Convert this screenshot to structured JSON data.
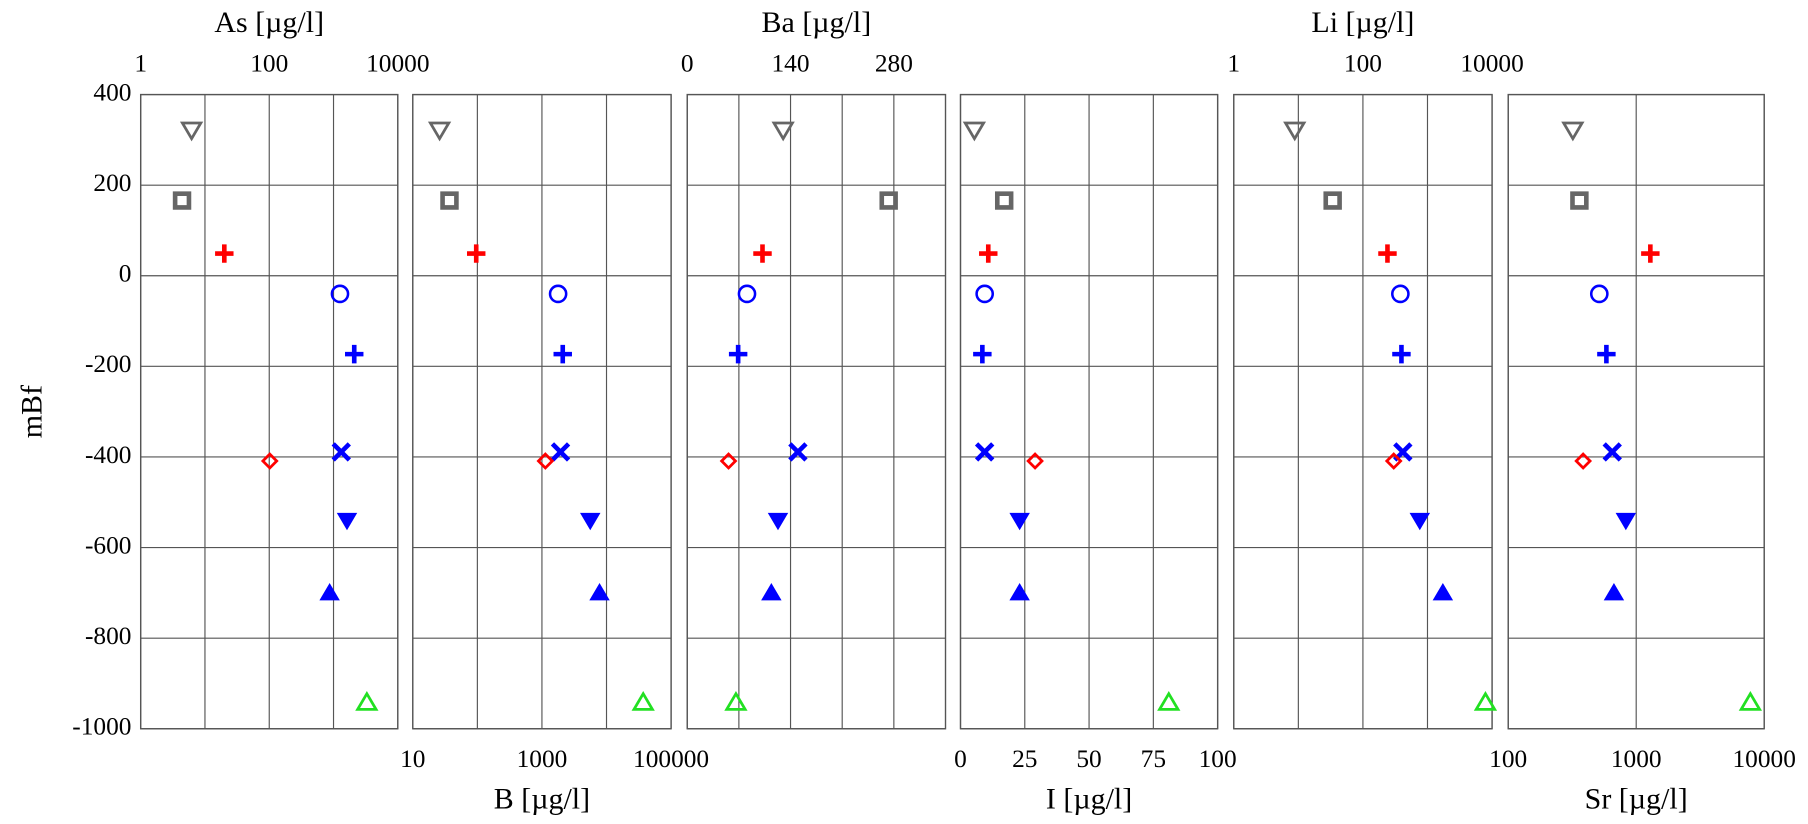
{
  "chart_data": [
    {
      "type": "scatter",
      "xlabel": "As [µg/l]",
      "ylabel": "mBf",
      "xaxis": "top",
      "xscale": "log",
      "xlim": [
        1,
        10000
      ],
      "xticks": [
        1,
        100,
        10000
      ],
      "xgrid": [
        10,
        1000
      ],
      "ylim": [
        -1000,
        400
      ],
      "yticks": [
        -1000,
        -800,
        -600,
        -400,
        -200,
        0,
        200,
        400
      ],
      "show_yticks": true,
      "markers": [
        "triangle-down-open",
        "square-open",
        "plus",
        "circle-open",
        "plus",
        "cross",
        "diamond-open",
        "triangle-down",
        "triangle-up",
        "triangle-up-open"
      ],
      "colors": [
        "#666666",
        "#666666",
        "#ff0000",
        "#0000ff",
        "#0000ff",
        "#0000ff",
        "#ff0000",
        "#0000ff",
        "#0000ff",
        "#22e022"
      ],
      "x": [
        6.2,
        4.4,
        20,
        1260,
        2100,
        1320,
        102,
        1620,
        870,
        3300
      ],
      "values": [
        321,
        166,
        49,
        -40,
        -173,
        -389,
        -409,
        -541,
        -699,
        -941
      ]
    },
    {
      "type": "scatter",
      "xlabel": "B [µg/l]",
      "xaxis": "bottom",
      "xscale": "log",
      "xlim": [
        10,
        100000
      ],
      "xticks": [
        10,
        1000,
        100000
      ],
      "xgrid": [
        100,
        10000
      ],
      "ylim": [
        -1000,
        400
      ],
      "yticks": [
        -1000,
        -800,
        -600,
        -400,
        -200,
        0,
        200,
        400
      ],
      "show_yticks": false,
      "markers": [
        "triangle-down-open",
        "square-open",
        "plus",
        "circle-open",
        "plus",
        "cross",
        "diamond-open",
        "triangle-down",
        "triangle-up",
        "triangle-up-open"
      ],
      "colors": [
        "#666666",
        "#666666",
        "#ff0000",
        "#0000ff",
        "#0000ff",
        "#0000ff",
        "#ff0000",
        "#0000ff",
        "#0000ff",
        "#22e022"
      ],
      "x": [
        26,
        37,
        96,
        1780,
        2100,
        1940,
        1130,
        5600,
        7800,
        37000
      ],
      "values": [
        321,
        166,
        49,
        -40,
        -173,
        -389,
        -409,
        -541,
        -699,
        -941
      ]
    },
    {
      "type": "scatter",
      "xlabel": "Ba [µg/l]",
      "xaxis": "top",
      "xscale": "linear",
      "xlim": [
        0,
        350
      ],
      "xticks": [
        0,
        140,
        280
      ],
      "xgrid": [
        70,
        210
      ],
      "ylim": [
        -1000,
        400
      ],
      "yticks": [
        -1000,
        -800,
        -600,
        -400,
        -200,
        0,
        200,
        400
      ],
      "show_yticks": false,
      "markers": [
        "triangle-down-open",
        "square-open",
        "plus",
        "circle-open",
        "plus",
        "cross",
        "diamond-open",
        "triangle-down",
        "triangle-up",
        "triangle-up-open"
      ],
      "colors": [
        "#666666",
        "#666666",
        "#ff0000",
        "#0000ff",
        "#0000ff",
        "#0000ff",
        "#ff0000",
        "#0000ff",
        "#0000ff",
        "#22e022"
      ],
      "x": [
        130,
        273,
        102,
        81,
        69,
        150,
        56,
        123,
        114,
        66
      ],
      "values": [
        321,
        166,
        49,
        -40,
        -173,
        -389,
        -409,
        -541,
        -699,
        -941
      ]
    },
    {
      "type": "scatter",
      "xlabel": "I [µg/l]",
      "xaxis": "bottom",
      "xscale": "linear",
      "xlim": [
        0,
        100
      ],
      "xticks": [
        0,
        25,
        50,
        75,
        100
      ],
      "ylim": [
        -1000,
        400
      ],
      "yticks": [
        -1000,
        -800,
        -600,
        -400,
        -200,
        0,
        200,
        400
      ],
      "show_yticks": false,
      "markers": [
        "triangle-down-open",
        "square-open",
        "plus",
        "circle-open",
        "plus",
        "cross",
        "diamond-open",
        "triangle-down",
        "triangle-up",
        "triangle-up-open"
      ],
      "colors": [
        "#666666",
        "#666666",
        "#ff0000",
        "#0000ff",
        "#0000ff",
        "#0000ff",
        "#ff0000",
        "#0000ff",
        "#0000ff",
        "#22e022"
      ],
      "x": [
        5.4,
        17,
        10.8,
        9.4,
        8.5,
        9.4,
        29,
        23,
        23,
        81
      ],
      "values": [
        321,
        166,
        49,
        -40,
        -173,
        -389,
        -409,
        -541,
        -699,
        -941
      ]
    },
    {
      "type": "scatter",
      "xlabel": "Li [µg/l]",
      "xaxis": "top",
      "xscale": "log",
      "xlim": [
        1,
        10000
      ],
      "xticks": [
        1,
        100,
        10000
      ],
      "xgrid": [
        10,
        1000
      ],
      "ylim": [
        -1000,
        400
      ],
      "yticks": [
        -1000,
        -800,
        -600,
        -400,
        -200,
        0,
        200,
        400
      ],
      "show_yticks": false,
      "markers": [
        "triangle-down-open",
        "square-open",
        "plus",
        "circle-open",
        "plus",
        "cross",
        "diamond-open",
        "triangle-down",
        "triangle-up",
        "triangle-up-open"
      ],
      "colors": [
        "#666666",
        "#666666",
        "#ff0000",
        "#0000ff",
        "#0000ff",
        "#0000ff",
        "#ff0000",
        "#0000ff",
        "#0000ff",
        "#22e022"
      ],
      "x": [
        8.8,
        34,
        240,
        380,
        395,
        415,
        300,
        760,
        1730,
        7900
      ],
      "values": [
        321,
        166,
        49,
        -40,
        -173,
        -389,
        -409,
        -541,
        -699,
        -941
      ]
    },
    {
      "type": "scatter",
      "xlabel": "Sr [µg/l]",
      "xaxis": "bottom",
      "xscale": "log",
      "xlim": [
        100,
        10000
      ],
      "xticks": [
        100,
        1000,
        10000
      ],
      "ylim": [
        -1000,
        400
      ],
      "yticks": [
        -1000,
        -800,
        -600,
        -400,
        -200,
        0,
        200,
        400
      ],
      "show_yticks": false,
      "markers": [
        "triangle-down-open",
        "square-open",
        "plus",
        "circle-open",
        "plus",
        "cross",
        "diamond-open",
        "triangle-down",
        "triangle-up",
        "triangle-up-open"
      ],
      "colors": [
        "#666666",
        "#666666",
        "#ff0000",
        "#0000ff",
        "#0000ff",
        "#0000ff",
        "#ff0000",
        "#0000ff",
        "#0000ff",
        "#22e022"
      ],
      "x": [
        320,
        360,
        1290,
        515,
        585,
        650,
        385,
        830,
        670,
        7800
      ],
      "values": [
        321,
        166,
        49,
        -40,
        -173,
        -389,
        -409,
        -541,
        -699,
        -941
      ]
    }
  ]
}
